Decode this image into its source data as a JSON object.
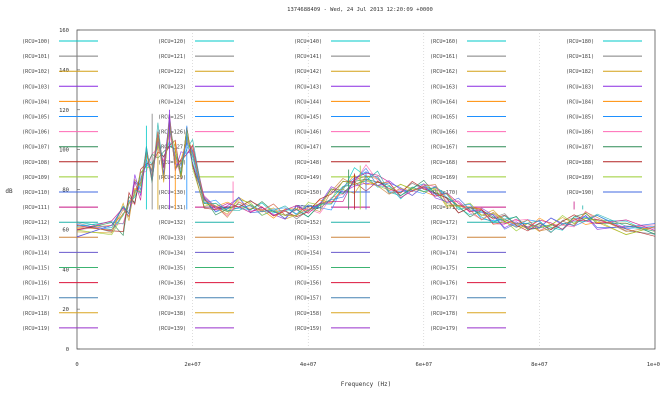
{
  "chart_data": {
    "type": "line",
    "title": "1374688409 - Wed, 24 Jul 2013 12:20:09 +0000",
    "xlabel": "Frequency (Hz)",
    "ylabel": "dB",
    "xlim": [
      0,
      100000000
    ],
    "ylim": [
      0,
      160
    ],
    "x_ticks": [
      0,
      20000000,
      40000000,
      60000000,
      80000000,
      100000000
    ],
    "x_tick_labels": [
      "0",
      "2e+07",
      "4e+07",
      "6e+07",
      "8e+07",
      "1e+08"
    ],
    "y_ticks": [
      0,
      20,
      40,
      60,
      80,
      100,
      120,
      140,
      160
    ],
    "y_tick_labels": [
      "0",
      "20",
      "40",
      "60",
      "80",
      "100",
      "120",
      "140",
      "160"
    ],
    "grid": true,
    "legend_columns": [
      [
        "(RCU=100)",
        "(RCU=101)",
        "(RCU=102)",
        "(RCU=103)",
        "(RCU=104)",
        "(RCU=105)",
        "(RCU=106)",
        "(RCU=107)",
        "(RCU=108)",
        "(RCU=109)",
        "(RCU=110)",
        "(RCU=111)",
        "(RCU=112)",
        "(RCU=113)",
        "(RCU=114)",
        "(RCU=115)",
        "(RCU=116)",
        "(RCU=117)",
        "(RCU=118)",
        "(RCU=119)"
      ],
      [
        "(RCU=120)",
        "(RCU=121)",
        "(RCU=122)",
        "(RCU=123)",
        "(RCU=124)",
        "(RCU=125)",
        "(RCU=126)",
        "(RCU=127)",
        "(RCU=128)",
        "(RCU=129)",
        "(RCU=130)",
        "(RCU=131)",
        "(RCU=132)",
        "(RCU=133)",
        "(RCU=134)",
        "(RCU=135)",
        "(RCU=136)",
        "(RCU=137)",
        "(RCU=138)",
        "(RCU=139)"
      ],
      [
        "(RCU=140)",
        "(RCU=141)",
        "(RCU=142)",
        "(RCU=143)",
        "(RCU=144)",
        "(RCU=145)",
        "(RCU=146)",
        "(RCU=147)",
        "(RCU=148)",
        "(RCU=149)",
        "(RCU=150)",
        "(RCU=151)",
        "(RCU=152)",
        "(RCU=153)",
        "(RCU=154)",
        "(RCU=155)",
        "(RCU=156)",
        "(RCU=157)",
        "(RCU=158)",
        "(RCU=159)"
      ],
      [
        "(RCU=160)",
        "(RCU=161)",
        "(RCU=162)",
        "(RCU=163)",
        "(RCU=164)",
        "(RCU=165)",
        "(RCU=166)",
        "(RCU=167)",
        "(RCU=168)",
        "(RCU=169)",
        "(RCU=170)",
        "(RCU=171)",
        "(RCU=172)",
        "(RCU=173)",
        "(RCU=174)",
        "(RCU=175)",
        "(RCU=176)",
        "(RCU=177)",
        "(RCU=178)",
        "(RCU=179)"
      ],
      [
        "(RCU=180)",
        "(RCU=181)",
        "(RCU=182)",
        "(RCU=183)",
        "(RCU=184)",
        "(RCU=185)",
        "(RCU=186)",
        "(RCU=187)",
        "(RCU=188)",
        "(RCU=189)",
        "(RCU=190)"
      ]
    ],
    "legend_colors": [
      "#00c8c8",
      "#7f7f7f",
      "#d4a017",
      "#8a2be2",
      "#ff8c00",
      "#1e90ff",
      "#ff69b4",
      "#2e8b57",
      "#b22222",
      "#9acd32",
      "#4169e1",
      "#c71585",
      "#20b2aa",
      "#cd853f",
      "#6a5acd",
      "#3cb371",
      "#dc143c",
      "#4682b4",
      "#daa520",
      "#9932cc"
    ],
    "spectrum_profile": {
      "x": [
        0,
        6000000,
        8000000,
        9000000,
        10000000,
        11000000,
        12000000,
        13000000,
        14000000,
        15000000,
        16000000,
        17000000,
        18000000,
        19000000,
        20000000,
        22000000,
        24000000,
        26000000,
        28000000,
        30000000,
        32000000,
        34000000,
        36000000,
        38000000,
        40000000,
        42000000,
        44000000,
        46000000,
        48000000,
        50000000,
        52000000,
        54000000,
        56000000,
        58000000,
        60000000,
        62000000,
        64000000,
        66000000,
        68000000,
        70000000,
        72000000,
        74000000,
        76000000,
        78000000,
        80000000,
        82000000,
        84000000,
        86000000,
        88000000,
        90000000,
        95000000,
        100000000
      ],
      "y": [
        60,
        61,
        66,
        72,
        78,
        84,
        95,
        90,
        104,
        92,
        110,
        96,
        90,
        106,
        96,
        74,
        71,
        70,
        73,
        71,
        70,
        69,
        68,
        69,
        70,
        72,
        76,
        80,
        84,
        86,
        84,
        81,
        79,
        80,
        81,
        79,
        75,
        72,
        70,
        68,
        66,
        64,
        63,
        62,
        62,
        62,
        63,
        64,
        66,
        64,
        61,
        60
      ]
    },
    "peak_markers": {
      "x": [
        12000000,
        13000000,
        14000000,
        16000000,
        17000000,
        19000000,
        27000000,
        47000000,
        48000000,
        49000000,
        50000000,
        86000000,
        87500000
      ],
      "y": [
        112,
        118,
        106,
        120,
        104,
        112,
        84,
        90,
        88,
        92,
        89,
        74,
        72
      ]
    }
  }
}
